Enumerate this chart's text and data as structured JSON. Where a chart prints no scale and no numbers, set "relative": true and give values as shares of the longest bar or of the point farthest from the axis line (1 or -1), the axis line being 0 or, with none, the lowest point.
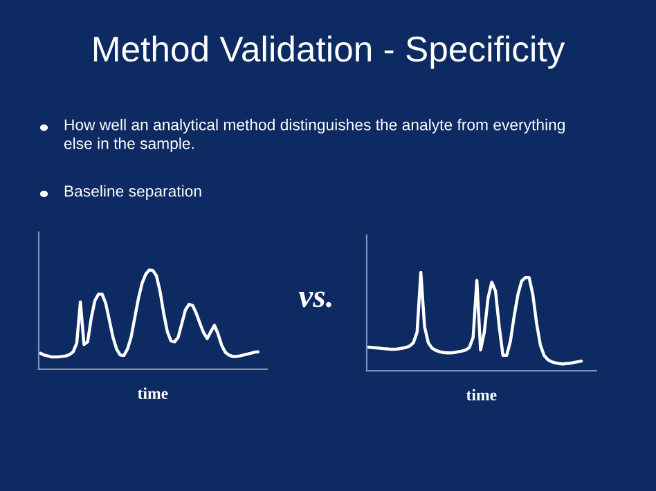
{
  "chart_data": [
    {
      "type": "line",
      "relative": true,
      "title": "Method Validation - Specificity",
      "xlabel": "time",
      "color": "#ffffff",
      "annotations": [
        "How well an analytical method distinguishes the analyte from everything\nelse in the sample.",
        "Baseline separation",
        "vs."
      ],
      "categories": [
        null,
        null,
        null,
        null,
        null,
        null,
        null,
        null,
        null,
        null,
        null,
        null,
        null,
        null,
        null,
        null,
        null,
        null,
        null,
        null,
        null,
        null,
        null,
        null,
        null,
        null,
        null,
        null,
        null,
        null,
        null,
        null,
        null,
        null,
        null,
        null,
        null,
        null,
        null,
        null,
        null,
        null,
        null,
        null,
        null,
        null,
        null,
        null,
        null,
        null,
        null,
        null,
        null,
        null,
        null,
        null,
        null,
        null,
        null,
        null,
        null
      ],
      "values": [
        0.161,
        0.143,
        0.134,
        0.124,
        0.124,
        0.124,
        0.129,
        0.134,
        0.147,
        0.175,
        0.263,
        0.677,
        0.249,
        0.276,
        0.516,
        0.691,
        0.756,
        0.756,
        0.664,
        0.493,
        0.323,
        0.203,
        0.143,
        0.138,
        0.203,
        0.323,
        0.516,
        0.71,
        0.862,
        0.954,
        1,
        0.995,
        0.94,
        0.783,
        0.562,
        0.378,
        0.286,
        0.276,
        0.323,
        0.461,
        0.599,
        0.654,
        0.641,
        0.562,
        0.461,
        0.369,
        0.309,
        0.378,
        0.442,
        0.355,
        0.24,
        0.171,
        0.143,
        0.129,
        0.129,
        0.134,
        0.143,
        0.152,
        0.161,
        0.171,
        0.175
      ]
    },
    {
      "type": "line",
      "relative": true,
      "xlabel": "time",
      "color": "#ffffff",
      "categories": [
        null,
        null,
        null,
        null,
        null,
        null,
        null,
        null,
        null,
        null,
        null,
        null,
        null,
        null,
        null,
        null,
        null,
        null,
        null,
        null,
        null,
        null,
        null,
        null,
        null,
        null,
        null,
        null,
        null,
        null,
        null,
        null,
        null,
        null,
        null,
        null,
        null,
        null,
        null,
        null,
        null,
        null,
        null,
        null,
        null,
        null,
        null,
        null,
        null,
        null,
        null,
        null,
        null,
        null,
        null,
        null,
        null,
        null
      ],
      "values": [
        0.24,
        0.236,
        0.233,
        0.229,
        0.225,
        0.222,
        0.218,
        0.218,
        0.222,
        0.229,
        0.236,
        0.251,
        0.284,
        0.393,
        1,
        0.447,
        0.284,
        0.229,
        0.207,
        0.193,
        0.185,
        0.182,
        0.182,
        0.185,
        0.193,
        0.2,
        0.211,
        0.236,
        0.338,
        0.92,
        0.211,
        0.393,
        0.738,
        0.902,
        0.811,
        0.447,
        0.156,
        0.156,
        0.302,
        0.556,
        0.775,
        0.913,
        0.949,
        0.949,
        0.775,
        0.484,
        0.265,
        0.156,
        0.113,
        0.091,
        0.08,
        0.073,
        0.069,
        0.073,
        0.076,
        0.084,
        0.091,
        0.098
      ]
    }
  ]
}
